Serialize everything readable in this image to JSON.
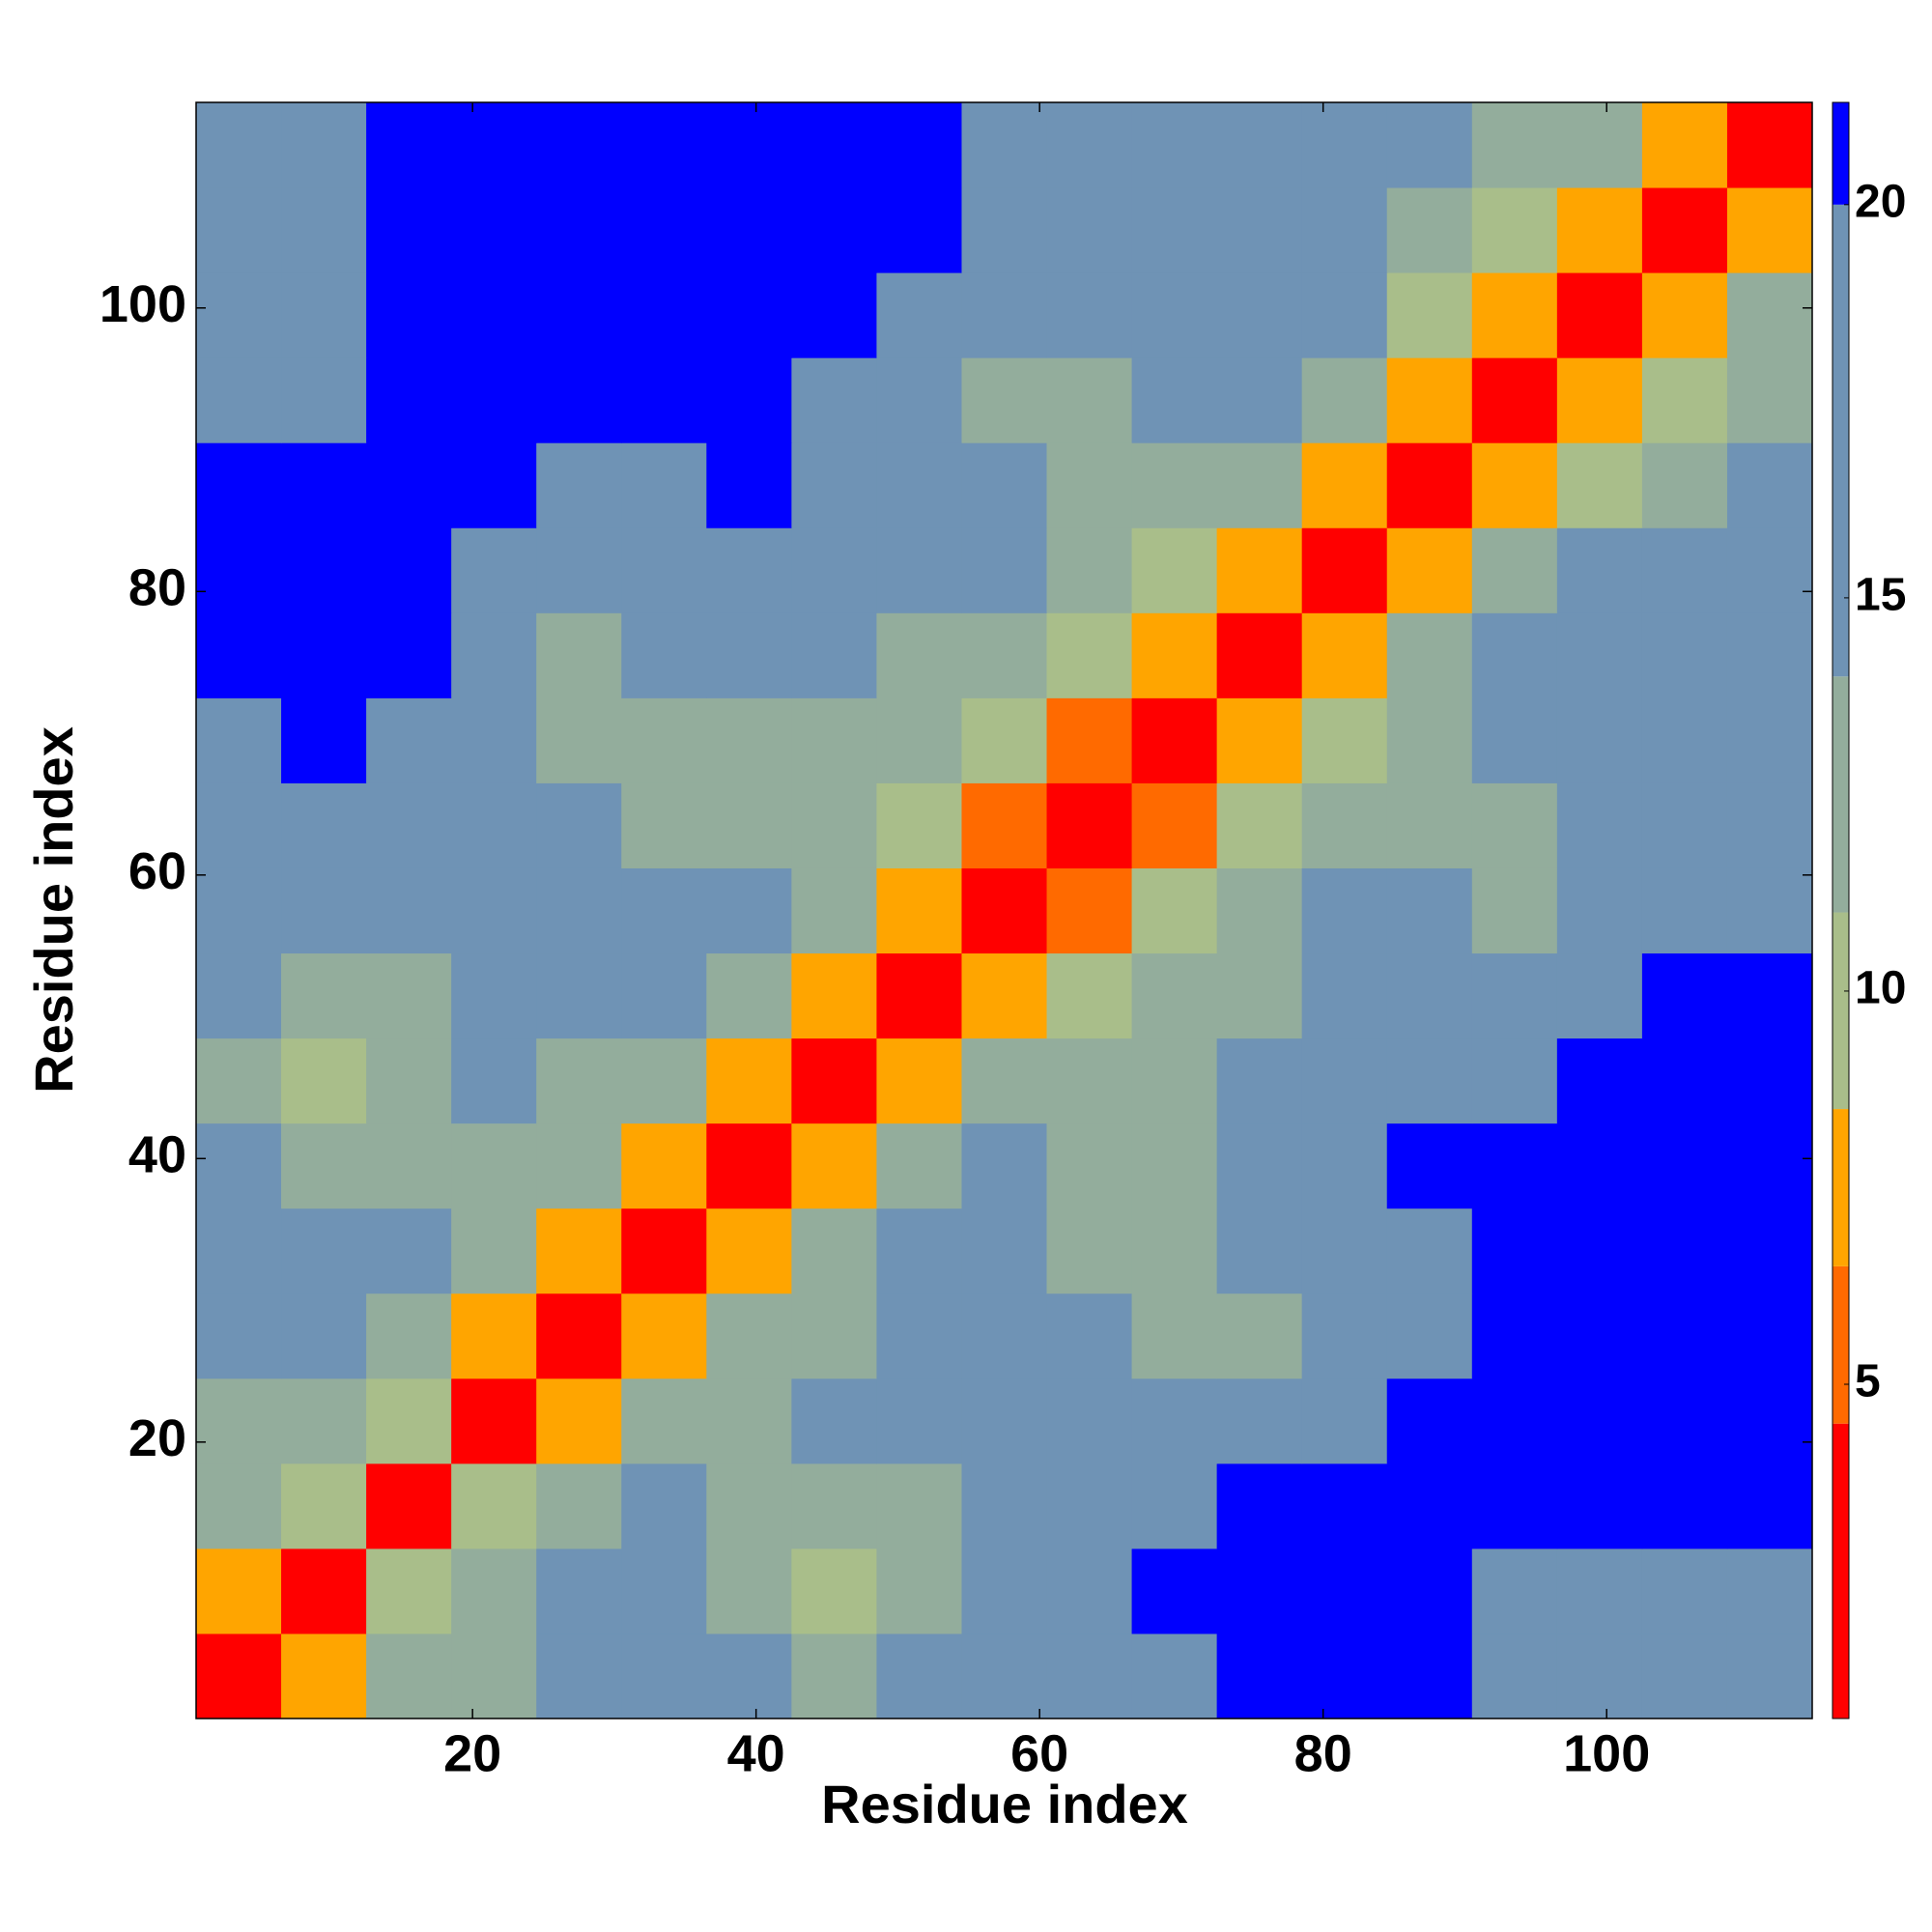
{
  "chart_data": {
    "type": "heatmap",
    "xlabel": "Residue index",
    "ylabel": "Residue index",
    "x": [
      3.5,
      9.5,
      15.5,
      21.5,
      27.5,
      33.5,
      39.5,
      45.5,
      51.5,
      57.5,
      63.5,
      69.5,
      75.5,
      81.5,
      87.5,
      93.5,
      99.5,
      105.5,
      111.5
    ],
    "y": [
      3.5,
      9.5,
      15.5,
      21.5,
      27.5,
      33.5,
      39.5,
      45.5,
      51.5,
      57.5,
      63.5,
      69.5,
      75.5,
      81.5,
      87.5,
      93.5,
      99.5,
      105.5,
      111.5
    ],
    "z": [
      [
        3,
        8,
        11,
        13,
        14,
        15,
        14,
        13,
        15,
        17,
        17,
        19,
        21,
        21,
        21,
        19,
        18,
        15,
        18
      ],
      [
        8,
        3,
        9,
        12,
        14,
        14,
        12,
        10,
        12,
        14,
        16,
        20,
        21,
        21,
        21,
        19,
        18,
        16,
        18
      ],
      [
        11,
        9,
        3,
        9,
        12,
        14,
        13,
        12,
        12,
        14,
        16,
        18,
        21,
        21,
        21,
        21,
        21,
        20,
        21
      ],
      [
        13,
        12,
        9,
        3,
        8,
        11,
        13,
        14,
        14,
        14,
        15,
        15,
        16,
        18,
        21,
        21,
        21,
        21,
        21
      ],
      [
        14,
        14,
        12,
        8,
        3,
        8,
        11,
        13,
        15,
        14,
        14,
        13,
        12,
        16,
        19,
        21,
        21,
        21,
        21
      ],
      [
        15,
        14,
        14,
        11,
        8,
        3,
        7,
        11,
        14,
        15,
        13,
        12,
        14,
        16,
        19,
        20,
        21,
        21,
        21
      ],
      [
        14,
        12,
        13,
        13,
        11,
        7,
        3,
        8,
        12,
        14,
        13,
        13,
        15,
        17,
        20,
        21,
        21,
        20,
        21
      ],
      [
        13,
        10,
        12,
        14,
        13,
        11,
        8,
        3,
        7,
        11,
        12,
        13,
        15,
        17,
        18,
        19,
        21,
        21,
        21
      ],
      [
        15,
        12,
        12,
        14,
        15,
        14,
        12,
        7,
        3,
        8,
        10,
        12,
        13,
        15,
        17,
        18,
        19,
        21,
        21
      ],
      [
        17,
        14,
        14,
        14,
        14,
        15,
        14,
        11,
        8,
        3,
        6,
        10,
        12,
        14,
        14,
        13,
        14,
        15,
        17
      ],
      [
        17,
        16,
        16,
        15,
        14,
        13,
        13,
        12,
        10,
        6,
        3,
        6,
        10,
        12,
        13,
        13,
        14,
        15,
        16
      ],
      [
        19,
        20,
        18,
        15,
        13,
        12,
        13,
        13,
        12,
        10,
        6,
        3,
        7,
        10,
        13,
        14,
        15,
        17,
        19
      ],
      [
        21,
        21,
        21,
        16,
        12,
        14,
        15,
        15,
        13,
        12,
        10,
        7,
        3,
        7,
        11,
        14,
        15,
        16,
        18
      ],
      [
        21,
        21,
        21,
        18,
        16,
        16,
        17,
        17,
        15,
        14,
        12,
        10,
        7,
        3,
        8,
        11,
        14,
        15,
        17
      ],
      [
        21,
        21,
        21,
        21,
        19,
        19,
        20,
        18,
        17,
        14,
        13,
        13,
        11,
        8,
        3,
        8,
        10,
        13,
        15
      ],
      [
        19,
        19,
        21,
        21,
        21,
        20,
        21,
        19,
        18,
        13,
        13,
        14,
        14,
        11,
        8,
        3,
        8,
        10,
        13
      ],
      [
        18,
        18,
        21,
        21,
        21,
        21,
        21,
        21,
        19,
        14,
        14,
        15,
        15,
        14,
        10,
        8,
        3,
        8,
        11
      ],
      [
        15,
        16,
        20,
        21,
        21,
        21,
        20,
        21,
        21,
        15,
        15,
        17,
        16,
        15,
        13,
        10,
        8,
        3,
        8
      ],
      [
        18,
        18,
        21,
        21,
        21,
        21,
        21,
        21,
        21,
        17,
        16,
        19,
        18,
        17,
        15,
        13,
        11,
        8,
        3
      ]
    ],
    "xlim": [
      0.5,
      114.5
    ],
    "ylim": [
      0.5,
      114.5
    ],
    "xticks": [
      20,
      40,
      60,
      80,
      100
    ],
    "yticks": [
      20,
      40,
      60,
      80,
      100
    ],
    "colorbar_lim": [
      0.75,
      21.3
    ],
    "colorbar_ticks": [
      5,
      10,
      15,
      20
    ],
    "colorscale": [
      {
        "from": 0.75,
        "color": "#ff0000"
      },
      {
        "from": 4.5,
        "color": "#ff6a00"
      },
      {
        "from": 6.5,
        "color": "#ffa500"
      },
      {
        "from": 8.5,
        "color": "#a9be8a"
      },
      {
        "from": 11,
        "color": "#93ad9c"
      },
      {
        "from": 14,
        "color": "#6f93b5"
      },
      {
        "from": 20,
        "color": "#0000ff"
      }
    ]
  }
}
